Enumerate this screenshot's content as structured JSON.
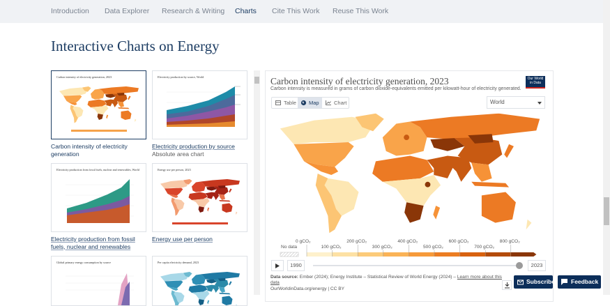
{
  "nav": {
    "items": [
      "Introduction",
      "Data Explorer",
      "Research & Writing",
      "Charts",
      "Cite This Work",
      "Reuse This Work"
    ]
  },
  "heading": "Interactive Charts on Energy",
  "cards": [
    {
      "thumb_title": "Carbon intensity of electricity generation, 2023",
      "caption": "Carbon intensity of electricity generation"
    },
    {
      "thumb_title": "Electricity production by source, World",
      "caption": "Electricity production by source",
      "note": "Absolute area chart"
    },
    {
      "thumb_title": "Electricity production from fossil fuels, nuclear and renewables, World",
      "caption": "Electricity production from fossil fuels, nuclear and renewables"
    },
    {
      "thumb_title": "Energy use per person, 2023",
      "caption": "Energy use per person"
    },
    {
      "thumb_title": "Global primary energy consumption by source"
    },
    {
      "thumb_title": "Per capita electricity demand, 2023"
    }
  ],
  "chart": {
    "title": "Carbon intensity of electricity generation, 2023",
    "subtitle": "Carbon intensity is measured in grams of carbon dioxide-equivalents emitted per kilowatt-hour of electricity generated.",
    "logo": [
      "Our World",
      "in Data"
    ],
    "tabs": [
      "Table",
      "Map",
      "Chart"
    ],
    "region": "World",
    "legend": {
      "no_data": "No data",
      "labels": [
        "0 gCO₂",
        "100 gCO₂",
        "200 gCO₂",
        "300 gCO₂",
        "400 gCO₂",
        "500 gCO₂",
        "600 gCO₂",
        "700 gCO₂",
        "800 gCO₂"
      ]
    },
    "timeline": {
      "start": "1990",
      "end": "2023"
    },
    "source_label": "Data source:",
    "source": "Ember (2024); Energy Institute – Statistical Review of World Energy (2024) –",
    "source_link": "Learn more about this data",
    "footer": "OurWorldinData.org/energy | CC BY"
  },
  "buttons": [
    "Subscribe",
    "Feedback"
  ]
}
